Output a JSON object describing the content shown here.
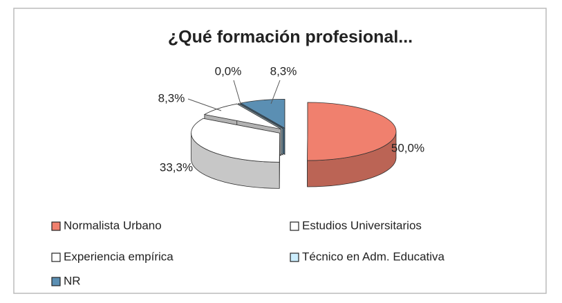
{
  "chart_data": {
    "type": "pie",
    "title": "¿Qué formación profesional...",
    "categories": [
      "Normalista  Urbano",
      "Estudios Universitarios",
      "Experiencia empírica",
      "Técnico en Adm. Educativa",
      "NR"
    ],
    "values": [
      50.0,
      33.3,
      8.3,
      0.0,
      8.3
    ],
    "value_labels": [
      "50,0%",
      "33,3%",
      "8,3%",
      "0,0%",
      "8,3%"
    ],
    "colors": [
      "#f0806e",
      "#ffffff",
      "#ffffff",
      "#cceeff",
      "#5b8fb3"
    ],
    "legend": "bottom"
  }
}
